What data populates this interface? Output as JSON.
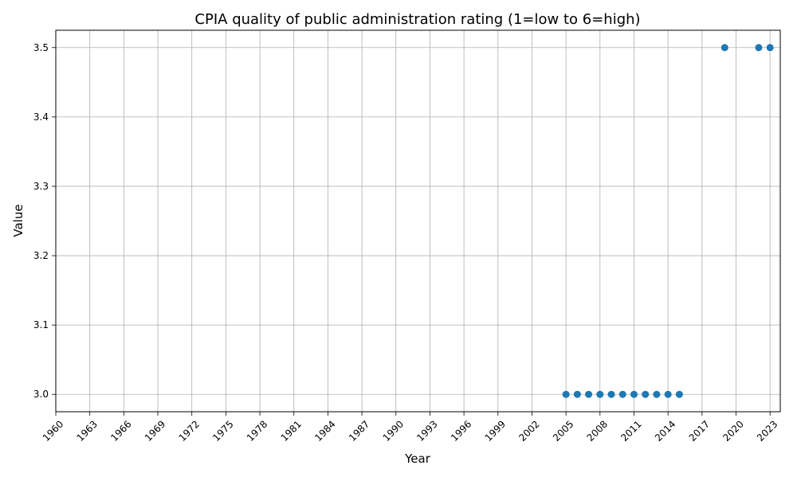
{
  "chart_data": {
    "type": "scatter",
    "title": "CPIA quality of public administration rating (1=low to 6=high)",
    "xlabel": "Year",
    "ylabel": "Value",
    "xlim": [
      1960,
      2023.9
    ],
    "ylim": [
      2.975,
      3.525
    ],
    "x_ticks": [
      1960,
      1963,
      1966,
      1969,
      1972,
      1975,
      1978,
      1981,
      1984,
      1987,
      1990,
      1993,
      1996,
      1999,
      2002,
      2005,
      2008,
      2011,
      2014,
      2017,
      2020,
      2023
    ],
    "y_ticks": [
      3.0,
      3.1,
      3.2,
      3.3,
      3.4,
      3.5
    ],
    "y_tick_labels": [
      "3.0",
      "3.1",
      "3.2",
      "3.3",
      "3.4",
      "3.5"
    ],
    "grid": true,
    "marker_color": "#1f77b4",
    "points": [
      {
        "x": 2005,
        "y": 3.0
      },
      {
        "x": 2006,
        "y": 3.0
      },
      {
        "x": 2007,
        "y": 3.0
      },
      {
        "x": 2008,
        "y": 3.0
      },
      {
        "x": 2009,
        "y": 3.0
      },
      {
        "x": 2010,
        "y": 3.0
      },
      {
        "x": 2011,
        "y": 3.0
      },
      {
        "x": 2012,
        "y": 3.0
      },
      {
        "x": 2013,
        "y": 3.0
      },
      {
        "x": 2014,
        "y": 3.0
      },
      {
        "x": 2015,
        "y": 3.0
      },
      {
        "x": 2019,
        "y": 3.5
      },
      {
        "x": 2022,
        "y": 3.5
      },
      {
        "x": 2023,
        "y": 3.5
      }
    ]
  }
}
